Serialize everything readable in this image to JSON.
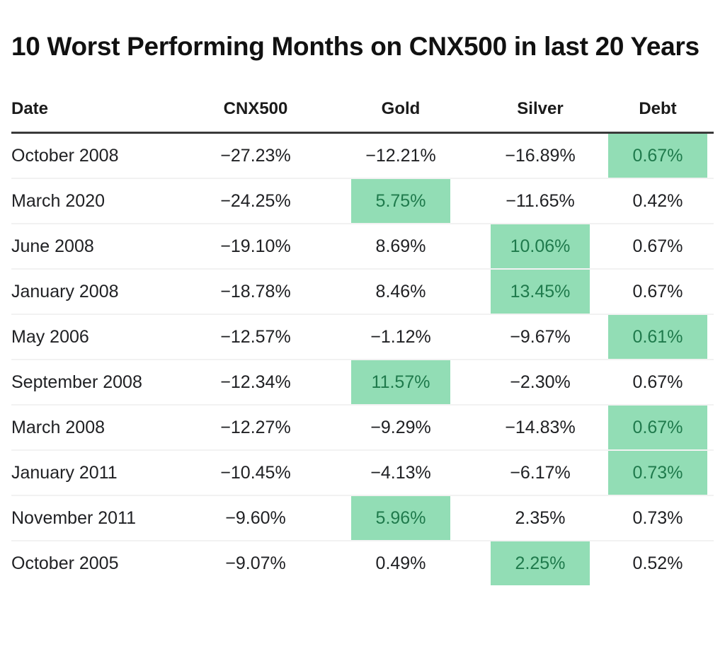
{
  "title": "10 Worst Performing Months on CNX500 in last 20 Years",
  "chart_data": {
    "type": "table",
    "title": "10 Worst Performing Months on CNX500 in last 20 Years",
    "columns": [
      "Date",
      "CNX500",
      "Gold",
      "Silver",
      "Debt"
    ],
    "rows": [
      {
        "cells": [
          "October 2008",
          "−27.23%",
          "−12.21%",
          "−16.89%",
          "0.67%"
        ],
        "highlight_col": 4
      },
      {
        "cells": [
          "March 2020",
          "−24.25%",
          "5.75%",
          "−11.65%",
          "0.42%"
        ],
        "highlight_col": 2
      },
      {
        "cells": [
          "June 2008",
          "−19.10%",
          "8.69%",
          "10.06%",
          "0.67%"
        ],
        "highlight_col": 3
      },
      {
        "cells": [
          "January 2008",
          "−18.78%",
          "8.46%",
          "13.45%",
          "0.67%"
        ],
        "highlight_col": 3
      },
      {
        "cells": [
          "May 2006",
          "−12.57%",
          "−1.12%",
          "−9.67%",
          "0.61%"
        ],
        "highlight_col": 4
      },
      {
        "cells": [
          "September 2008",
          "−12.34%",
          "11.57%",
          "−2.30%",
          "0.67%"
        ],
        "highlight_col": 2
      },
      {
        "cells": [
          "March 2008",
          "−12.27%",
          "−9.29%",
          "−14.83%",
          "0.67%"
        ],
        "highlight_col": 4
      },
      {
        "cells": [
          "January 2011",
          "−10.45%",
          "−4.13%",
          "−6.17%",
          "0.73%"
        ],
        "highlight_col": 4
      },
      {
        "cells": [
          "November 2011",
          "−9.60%",
          "5.96%",
          "2.35%",
          "0.73%"
        ],
        "highlight_col": 2
      },
      {
        "cells": [
          "October 2005",
          "−9.07%",
          "0.49%",
          "2.25%",
          "0.52%"
        ],
        "highlight_col": 3
      }
    ]
  },
  "colors": {
    "highlight_bg": "#92DDB5",
    "highlight_text": "#1F7A4C",
    "header_rule": "#3A3A3A",
    "row_rule": "#F2F2F2",
    "body_text": "#202124",
    "title_text": "#111111"
  }
}
